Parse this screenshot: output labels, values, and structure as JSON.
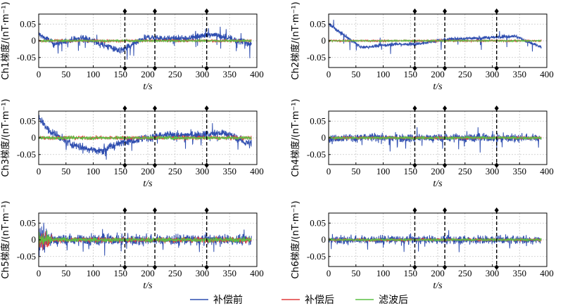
{
  "chart_data": [
    {
      "type": "line",
      "ylabel": "Ch1梯度/(nT·m⁻¹)",
      "xlabel": "t/s",
      "xlim": [
        0,
        400
      ],
      "ylim": [
        -0.08,
        0.08
      ],
      "xticks": [
        "0",
        "50",
        "100",
        "150",
        "200",
        "250",
        "300",
        "350",
        "400"
      ],
      "yticks": [
        "0.05",
        "0",
        "-0.05"
      ],
      "markers_x": [
        158,
        213,
        308
      ],
      "grid": true
    },
    {
      "type": "line",
      "ylabel": "Ch2梯度/(nT·m⁻¹)",
      "xlabel": "t/s",
      "xlim": [
        0,
        400
      ],
      "ylim": [
        -0.08,
        0.08
      ],
      "xticks": [
        "0",
        "50",
        "100",
        "150",
        "200",
        "250",
        "300",
        "350",
        "400"
      ],
      "yticks": [
        "0.05",
        "0",
        "-0.05"
      ],
      "markers_x": [
        158,
        213,
        308
      ],
      "grid": true
    },
    {
      "type": "line",
      "ylabel": "Ch3梯度/(nT·m⁻¹)",
      "xlabel": "t/s",
      "xlim": [
        0,
        400
      ],
      "ylim": [
        -0.08,
        0.08
      ],
      "xticks": [
        "0",
        "50",
        "100",
        "150",
        "200",
        "250",
        "300",
        "350",
        "400"
      ],
      "yticks": [
        "0.05",
        "0",
        "-0.05"
      ],
      "markers_x": [
        158,
        213,
        308
      ],
      "grid": true
    },
    {
      "type": "line",
      "ylabel": "Ch4梯度/(nT·m⁻¹)",
      "xlabel": "t/s",
      "xlim": [
        0,
        400
      ],
      "ylim": [
        -0.08,
        0.08
      ],
      "xticks": [
        "0",
        "50",
        "100",
        "150",
        "200",
        "250",
        "300",
        "350",
        "400"
      ],
      "yticks": [
        "0.05",
        "0",
        "-0.05"
      ],
      "markers_x": [
        158,
        213,
        308
      ],
      "grid": true
    },
    {
      "type": "line",
      "ylabel": "Ch5梯度/(nT·m⁻¹)",
      "xlabel": "t/s",
      "xlim": [
        0,
        400
      ],
      "ylim": [
        -0.08,
        0.08
      ],
      "xticks": [
        "0",
        "50",
        "100",
        "150",
        "200",
        "250",
        "300",
        "350",
        "400"
      ],
      "yticks": [
        "0.05",
        "0",
        "-0.05"
      ],
      "markers_x": [
        158,
        213,
        308
      ],
      "grid": true
    },
    {
      "type": "line",
      "ylabel": "Ch6梯度/(nT·m⁻¹)",
      "xlabel": "t/s",
      "xlim": [
        0,
        400
      ],
      "ylim": [
        -0.08,
        0.08
      ],
      "xticks": [
        "0",
        "50",
        "100",
        "150",
        "200",
        "250",
        "300",
        "350",
        "400"
      ],
      "yticks": [
        "0.05",
        "0",
        "-0.05"
      ],
      "markers_x": [
        158,
        213,
        308
      ],
      "grid": true
    }
  ],
  "legend": {
    "items": [
      {
        "label": "补偿前",
        "color": "#2f4eb0"
      },
      {
        "label": "补偿后",
        "color": "#e03c3c"
      },
      {
        "label": "滤波后",
        "color": "#5cc043"
      }
    ]
  }
}
